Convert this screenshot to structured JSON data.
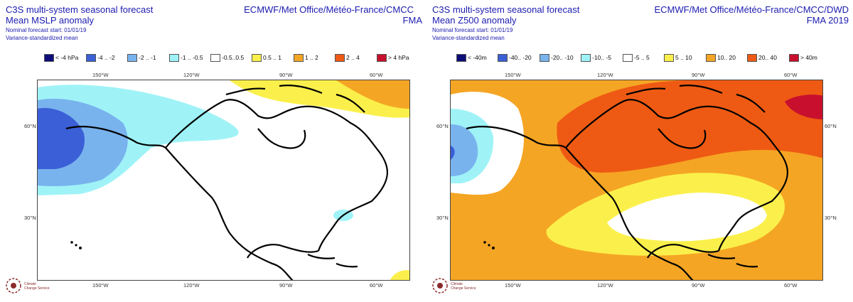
{
  "left": {
    "title_line1": "C3S multi-system seasonal forecast",
    "title_line2": "Mean MSLP anomaly",
    "nominal_start": "Nominal forecast start: 01/01/19",
    "method": "Variance-standardized mean",
    "centres": "ECMWF/Met Office/Météo-France/CMCC",
    "period": "FMA",
    "legend": [
      {
        "label": "< -4 hPa",
        "color": "#0d0d7a"
      },
      {
        "label": "-4 .. -2",
        "color": "#3a5fd6"
      },
      {
        "label": "-2 .. -1",
        "color": "#79b3ee"
      },
      {
        "label": "-1 .. -0.5",
        "color": "#9ff3f7"
      },
      {
        "label": "-0.5..0.5",
        "color": "#ffffff"
      },
      {
        "label": "0.5 .. 1",
        "color": "#fbf04b"
      },
      {
        "label": "1 .. 2",
        "color": "#f5a524"
      },
      {
        "label": "2 .. 4",
        "color": "#ee5a13"
      },
      {
        "label": "> 4 hPa",
        "color": "#c8102e"
      }
    ]
  },
  "right": {
    "title_line1": "C3S multi-system seasonal forecast",
    "title_line2": "Mean Z500 anomaly",
    "nominal_start": "Nominal forecast start: 01/01/19",
    "method": "Variance-standardized mean",
    "centres": "ECMWF/Met Office/Météo-France/CMCC/DWD",
    "period": "FMA 2019",
    "legend": [
      {
        "label": "< -40m",
        "color": "#0d0d7a"
      },
      {
        "label": "-40.. -20",
        "color": "#3a5fd6"
      },
      {
        "label": "-20.. -10",
        "color": "#79b3ee"
      },
      {
        "label": "-10.. -5",
        "color": "#9ff3f7"
      },
      {
        "label": "-5 .. 5",
        "color": "#ffffff"
      },
      {
        "label": "5 .. 10",
        "color": "#fbf04b"
      },
      {
        "label": "10.. 20",
        "color": "#f5a524"
      },
      {
        "label": "20.. 40",
        "color": "#ee5a13"
      },
      {
        "label": "> 40m",
        "color": "#c8102e"
      }
    ]
  },
  "axes": {
    "lon_labels": [
      "150°W",
      "120°W",
      "90°W",
      "60°W"
    ],
    "lat_labels": [
      "60°N",
      "30°N"
    ]
  },
  "logo": {
    "name": "Climate Change Service",
    "line1": "Climate",
    "line2": "Change Service"
  }
}
